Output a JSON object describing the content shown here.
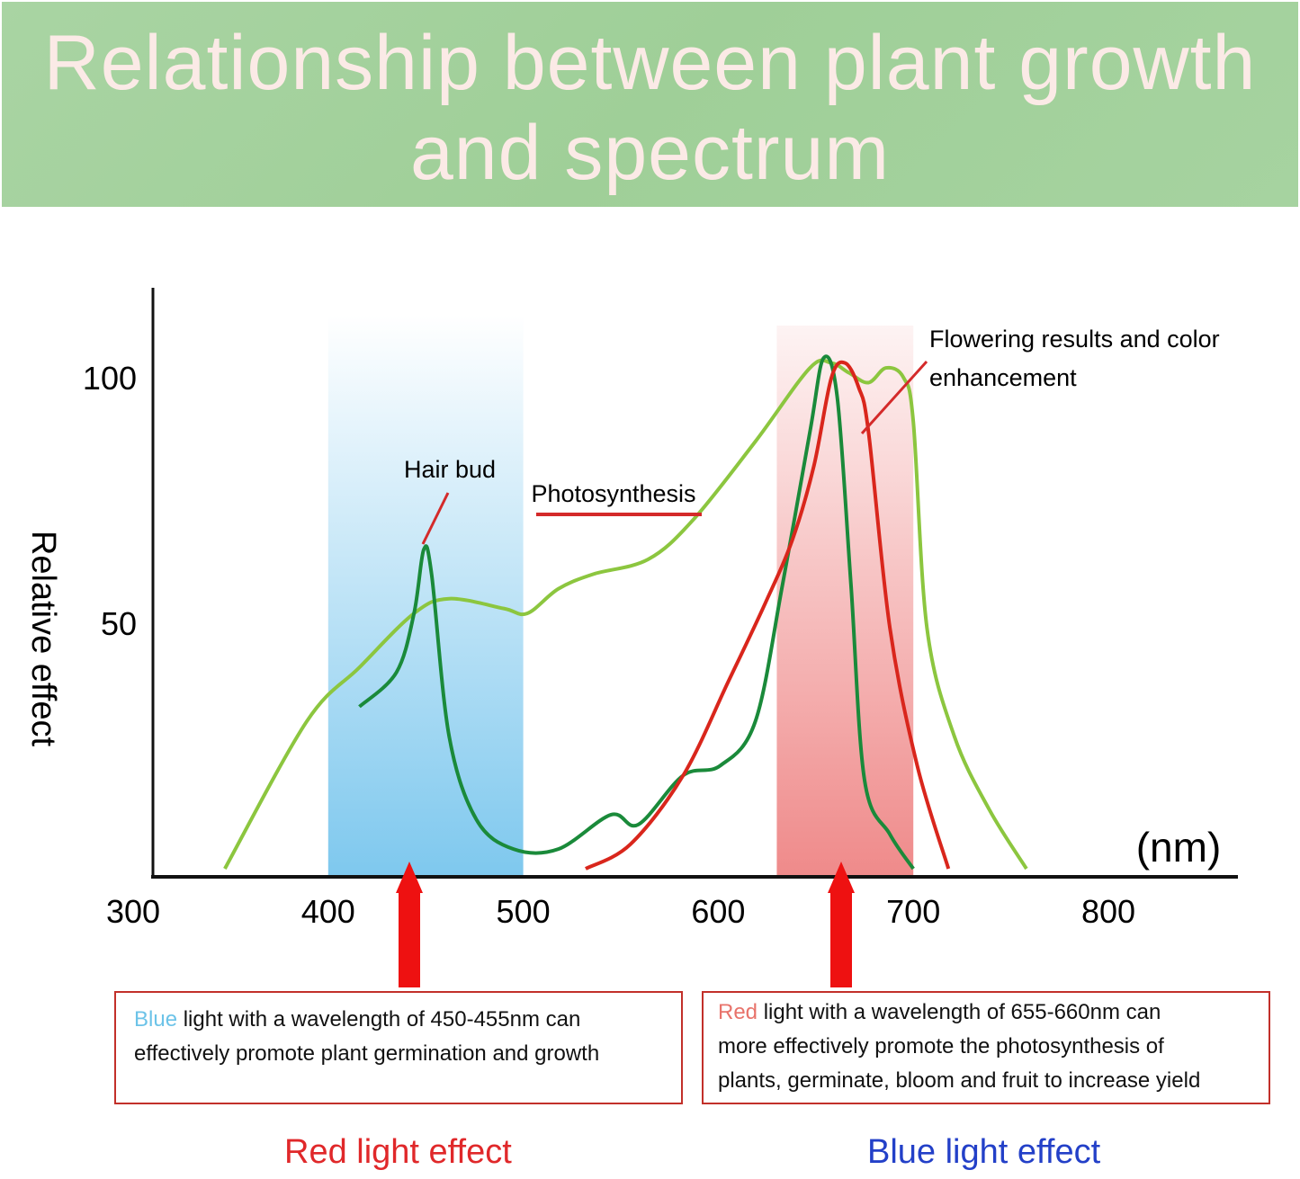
{
  "title": "Relationship between plant growth and spectrum",
  "colors": {
    "photosynthesis": "#8cc63f",
    "hair_bud": "#1a8a3a",
    "flowering": "#d9261c",
    "blue_band": "#7ec8ee",
    "red_band": "#ef8a8a",
    "arrow": "#ee1111",
    "box_border": "#c2302a",
    "blue_word": "#6cc3e8",
    "red_word": "#e8736b",
    "red_effect": "#e0282a",
    "blue_effect": "#2340c8"
  },
  "chart_data": {
    "type": "line",
    "xlabel": "(nm)",
    "ylabel": "Relative effect",
    "xlim": [
      300,
      820
    ],
    "ylim": [
      0,
      100
    ],
    "xticks": [
      300,
      400,
      500,
      600,
      700,
      800
    ],
    "yticks": [
      50,
      100
    ],
    "grid": false,
    "bands": [
      {
        "from": 400,
        "to": 500,
        "color": "blue"
      },
      {
        "from": 630,
        "to": 700,
        "color": "red"
      }
    ],
    "annotations": [
      "Hair bud",
      "Photosynthesis",
      "Flowering results and color",
      "enhancement"
    ],
    "series": [
      {
        "key": "photosynthesis",
        "x": [
          347,
          389,
          416,
          444,
          462,
          490,
          502,
          518,
          536,
          564,
          587,
          619,
          647,
          658,
          667,
          677,
          686,
          695,
          700,
          707,
          721,
          739,
          758
        ],
        "y": [
          0,
          30,
          41,
          52,
          55,
          53,
          52,
          57,
          60,
          63,
          71,
          87,
          102,
          103,
          101,
          99,
          102,
          100,
          91,
          49,
          27,
          12,
          0
        ]
      },
      {
        "key": "hair_bud",
        "x": [
          416,
          435,
          444,
          449,
          453,
          462,
          476,
          495,
          518,
          545,
          559,
          582,
          601,
          619,
          633,
          647,
          654,
          661,
          668,
          675,
          688,
          700
        ],
        "y": [
          33,
          40,
          52,
          65,
          60,
          27,
          10,
          4,
          4,
          11,
          9,
          19,
          21,
          30,
          58,
          89,
          104,
          96,
          58,
          18,
          7,
          0
        ]
      },
      {
        "key": "flowering",
        "x": [
          532,
          555,
          582,
          605,
          624,
          638,
          649,
          658,
          665,
          672,
          677,
          688,
          702,
          718
        ],
        "y": [
          0,
          5,
          19,
          38,
          54,
          67,
          82,
          100,
          103,
          98,
          89,
          49,
          21,
          0
        ]
      }
    ]
  },
  "boxes": {
    "left": {
      "word": "Blue",
      "line1": " light with a wavelength of 450-455nm can",
      "line2": "effectively promote plant germination and growth"
    },
    "right": {
      "word": "Red",
      "line1": " light with a wavelength of 655-660nm can",
      "line2": "more effectively promote the photosynthesis of",
      "line3": "plants, germinate, bloom and fruit to increase yield"
    }
  },
  "effects": {
    "left": "Red light effect",
    "right": "Blue light effect"
  }
}
